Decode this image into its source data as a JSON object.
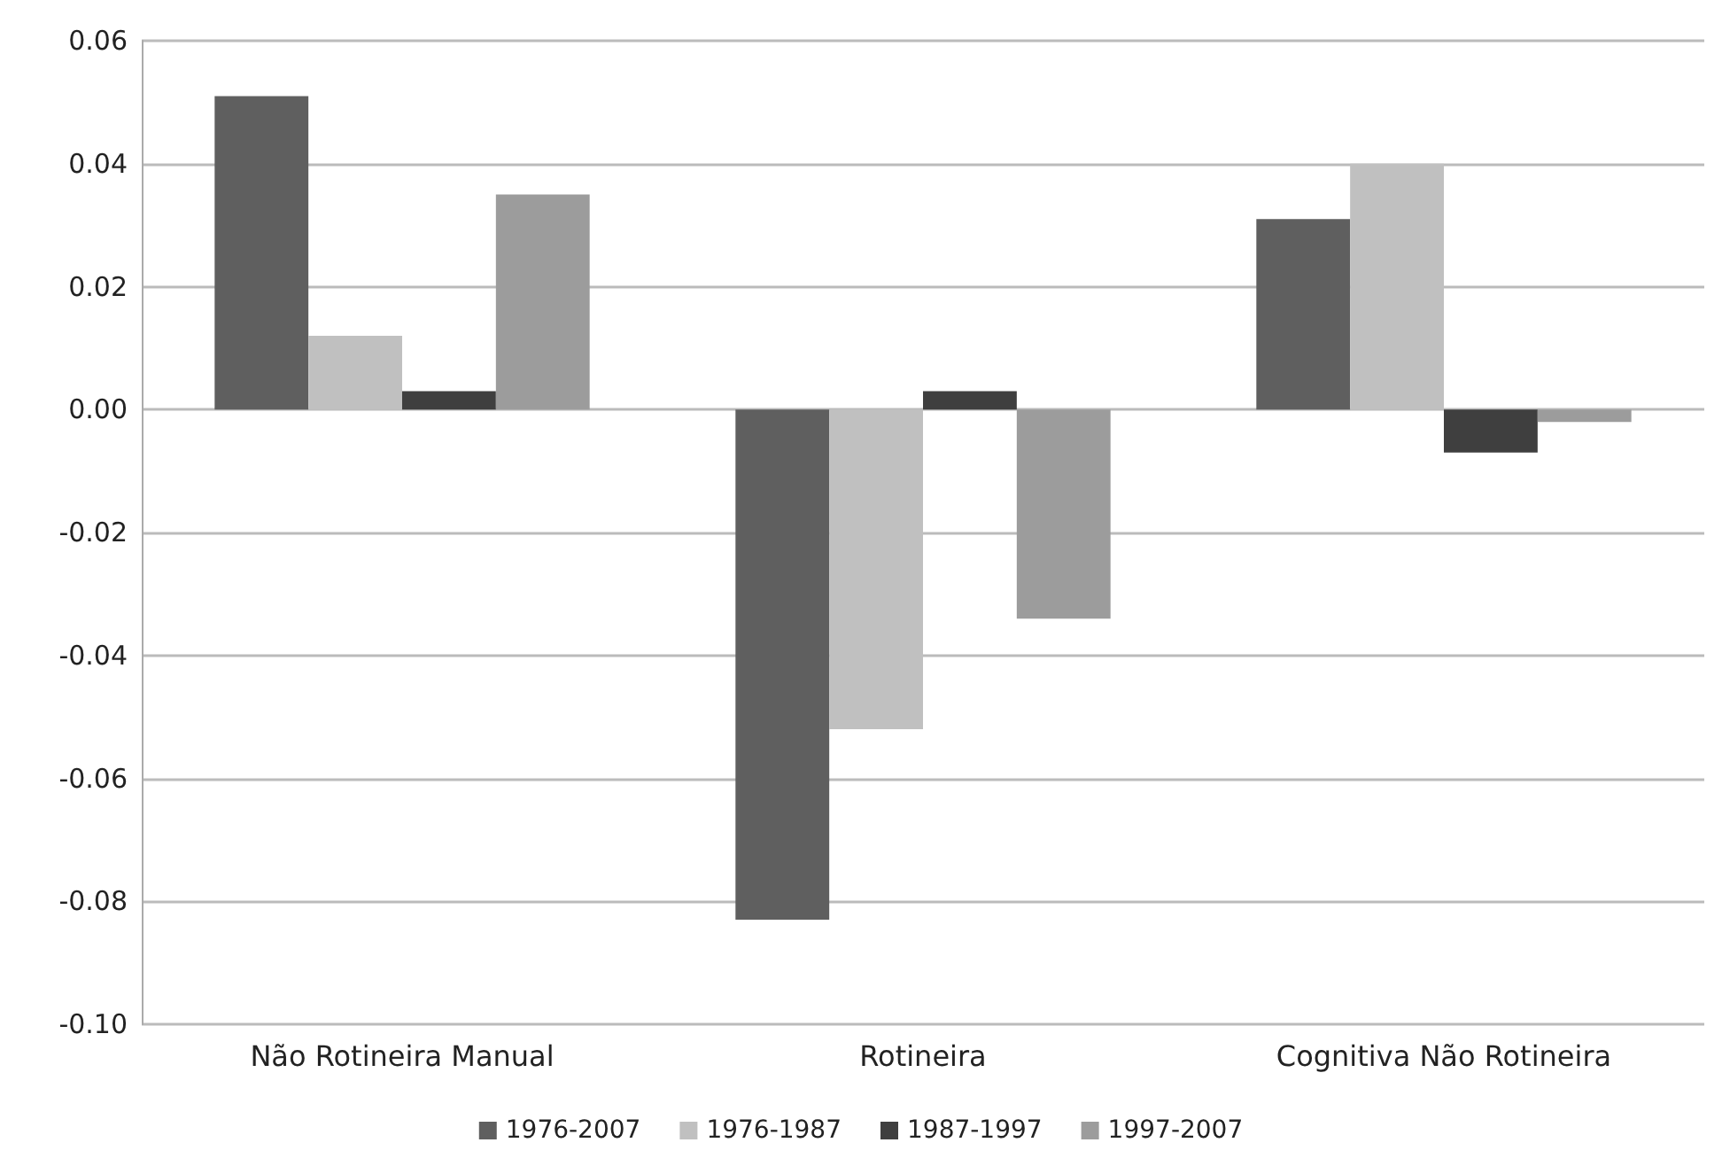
{
  "chart_data": {
    "type": "bar",
    "categories": [
      "Não Rotineira Manual",
      "Rotineira",
      "Cognitiva Não Rotineira"
    ],
    "series": [
      {
        "name": "1976-2007",
        "color": "#5f5f5f",
        "values": [
          0.051,
          -0.083,
          0.031
        ]
      },
      {
        "name": "1976-1987",
        "color": "#c0c0c0",
        "values": [
          0.012,
          -0.052,
          0.04
        ]
      },
      {
        "name": "1987-1997",
        "color": "#3f3f3f",
        "values": [
          0.003,
          0.003,
          -0.007
        ]
      },
      {
        "name": "1997-2007",
        "color": "#9c9c9c",
        "values": [
          0.035,
          -0.034,
          -0.002
        ]
      }
    ],
    "ylim": [
      -0.1,
      0.06
    ],
    "yticks": [
      {
        "value": -0.1,
        "label": "-0.10"
      },
      {
        "value": -0.08,
        "label": "-0.08"
      },
      {
        "value": -0.06,
        "label": "-0.06"
      },
      {
        "value": -0.04,
        "label": "-0.04"
      },
      {
        "value": -0.02,
        "label": "-0.02"
      },
      {
        "value": 0,
        "label": "0.00"
      },
      {
        "value": 0.02,
        "label": "0.02"
      },
      {
        "value": 0.04,
        "label": "0.04"
      },
      {
        "value": 0.06,
        "label": "0.06"
      }
    ],
    "grid": "y",
    "legend": "bottom"
  }
}
